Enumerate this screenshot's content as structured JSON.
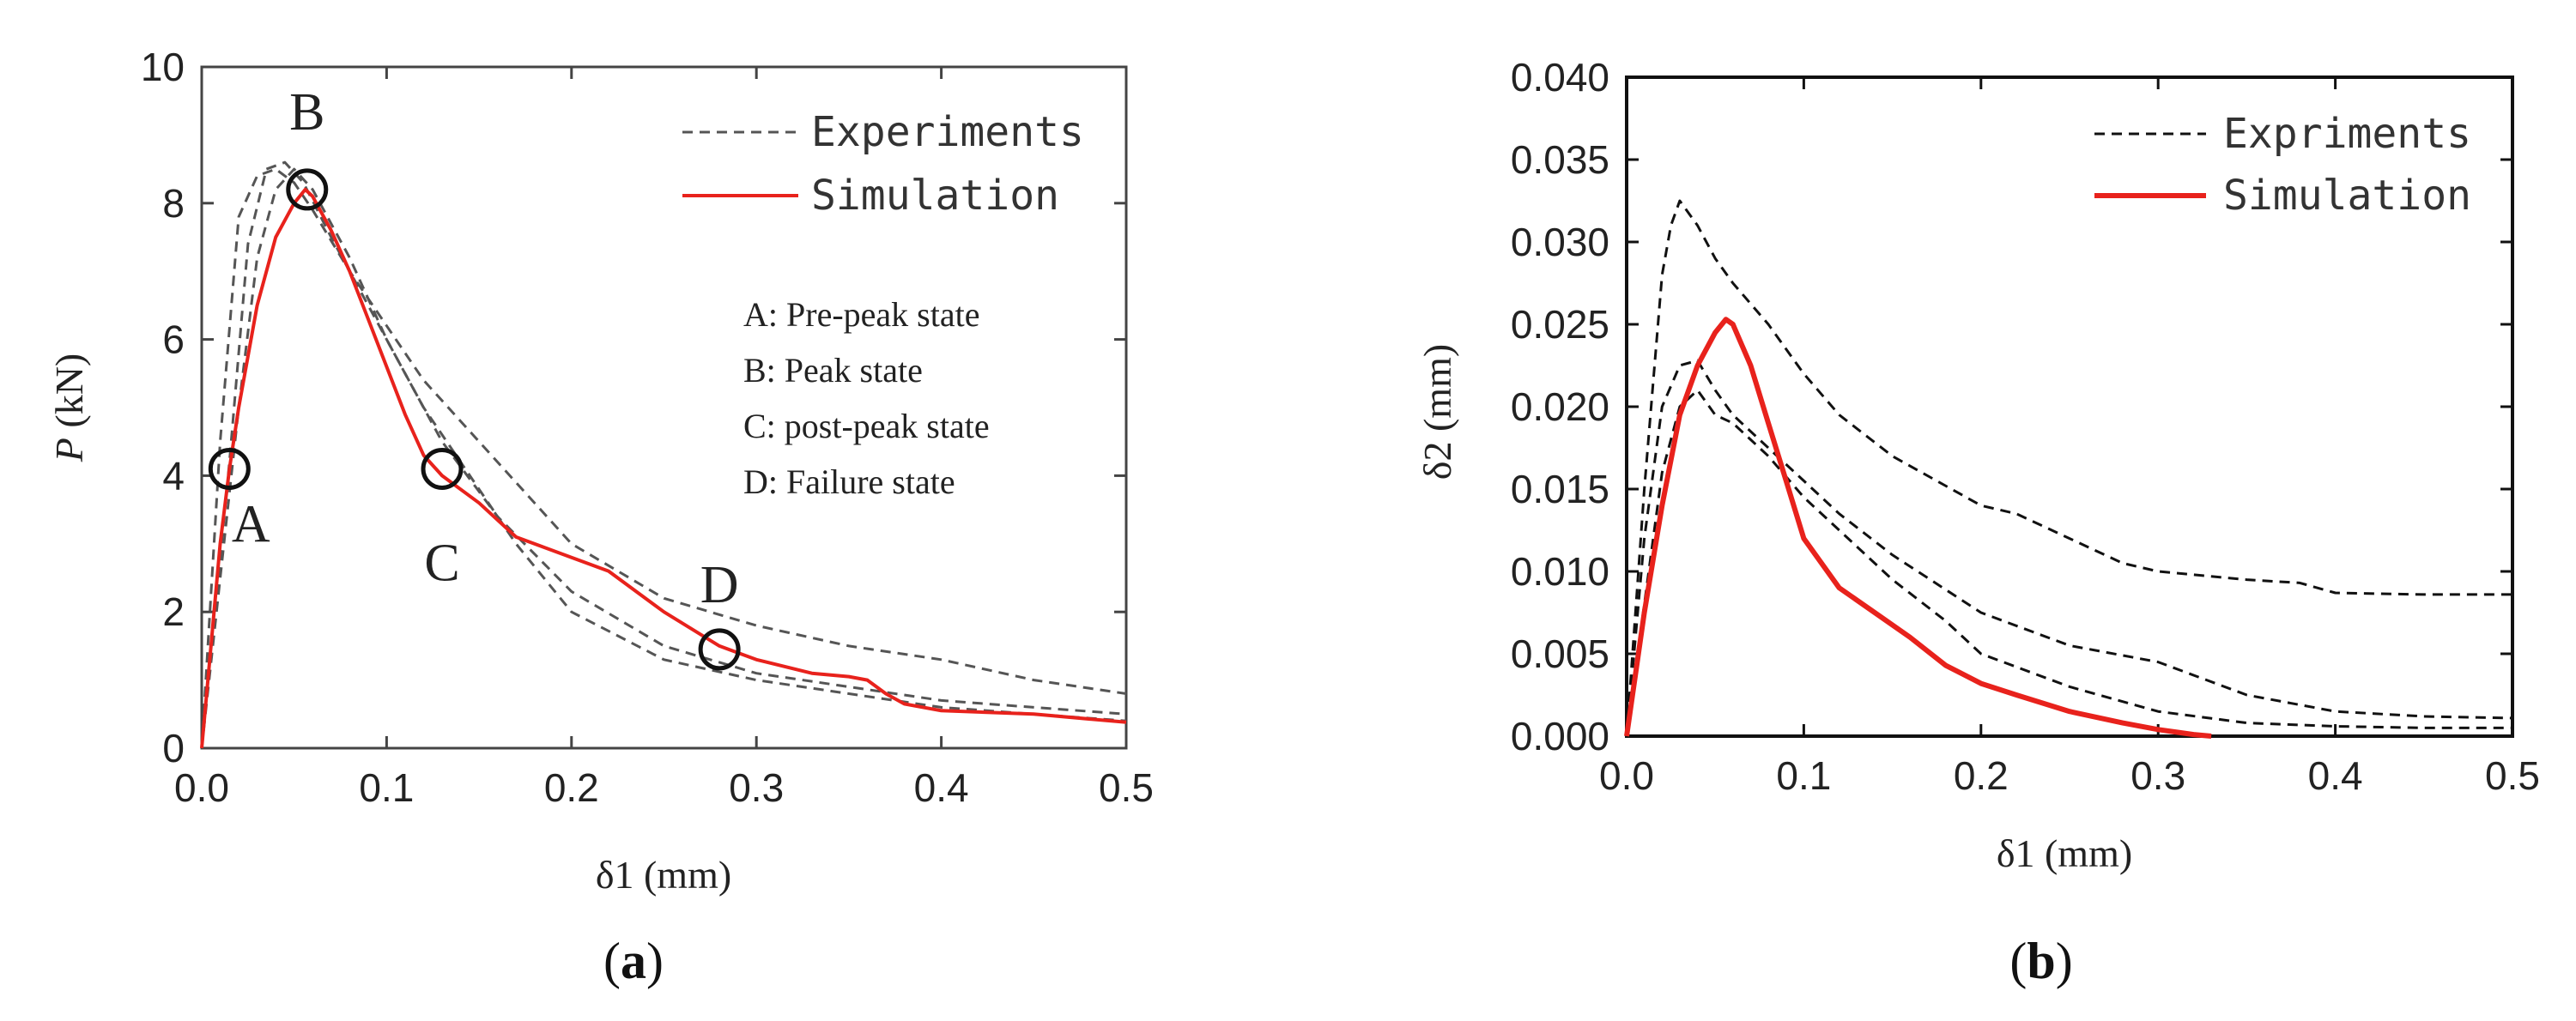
{
  "chart_data": [
    {
      "panel": "a",
      "type": "line",
      "title": "",
      "caption_prefix": "(",
      "caption_letter": "a",
      "caption_suffix": ")",
      "xlabel": "δ1 (mm)",
      "ylabel_var": "P",
      "ylabel_unit": " (kN)",
      "xlim": [
        0,
        0.5
      ],
      "ylim": [
        0,
        10
      ],
      "xticks": [
        "0.0",
        "0.1",
        "0.2",
        "0.3",
        "0.4",
        "0.5"
      ],
      "yticks": [
        "0",
        "2",
        "4",
        "6",
        "8",
        "10"
      ],
      "legend": [
        "Experiments",
        "Simulation"
      ],
      "legend_position": "top-right",
      "series": [
        {
          "name": "Experiments",
          "style": "dashed",
          "color": "#555555",
          "x": [
            0,
            0.01,
            0.02,
            0.03,
            0.04,
            0.05,
            0.06,
            0.08,
            0.1,
            0.12,
            0.15,
            0.2,
            0.25,
            0.3,
            0.35,
            0.4,
            0.45,
            0.5
          ],
          "y": [
            0,
            4.5,
            7.8,
            8.4,
            8.5,
            8.3,
            7.9,
            7.0,
            6.2,
            5.4,
            4.5,
            3.0,
            2.2,
            1.8,
            1.5,
            1.3,
            1.0,
            0.8
          ]
        },
        {
          "name": "Experiments",
          "style": "dashed",
          "color": "#555555",
          "x": [
            0,
            0.015,
            0.025,
            0.035,
            0.045,
            0.055,
            0.07,
            0.09,
            0.11,
            0.13,
            0.16,
            0.2,
            0.25,
            0.3,
            0.35,
            0.4,
            0.45,
            0.5
          ],
          "y": [
            0,
            4.2,
            7.4,
            8.5,
            8.6,
            8.3,
            7.5,
            6.5,
            5.5,
            4.5,
            3.4,
            2.3,
            1.5,
            1.1,
            0.9,
            0.7,
            0.6,
            0.5
          ]
        },
        {
          "name": "Experiments",
          "style": "dashed",
          "color": "#555555",
          "x": [
            0,
            0.02,
            0.03,
            0.04,
            0.05,
            0.06,
            0.08,
            0.1,
            0.12,
            0.14,
            0.17,
            0.2,
            0.25,
            0.3,
            0.35,
            0.4,
            0.45,
            0.5
          ],
          "y": [
            0,
            5.0,
            7.2,
            8.2,
            8.5,
            8.2,
            7.2,
            6.0,
            5.0,
            4.2,
            3.0,
            2.0,
            1.3,
            1.0,
            0.8,
            0.6,
            0.5,
            0.4
          ]
        },
        {
          "name": "Simulation",
          "style": "solid",
          "color": "#e8221c",
          "x": [
            0,
            0.005,
            0.01,
            0.015,
            0.02,
            0.03,
            0.04,
            0.05,
            0.056,
            0.06,
            0.07,
            0.08,
            0.09,
            0.1,
            0.11,
            0.12,
            0.13,
            0.15,
            0.17,
            0.2,
            0.22,
            0.25,
            0.28,
            0.3,
            0.33,
            0.35,
            0.36,
            0.37,
            0.38,
            0.4,
            0.45,
            0.5
          ],
          "y": [
            0,
            1.5,
            3.0,
            4.1,
            5.0,
            6.5,
            7.5,
            8.0,
            8.2,
            8.1,
            7.6,
            7.0,
            6.3,
            5.6,
            4.9,
            4.3,
            4.0,
            3.6,
            3.1,
            2.8,
            2.6,
            2.0,
            1.5,
            1.3,
            1.1,
            1.05,
            1.0,
            0.8,
            0.65,
            0.55,
            0.5,
            0.38
          ]
        }
      ],
      "points": [
        {
          "label": "A",
          "x": 0.015,
          "y": 4.1
        },
        {
          "label": "B",
          "x": 0.057,
          "y": 8.2
        },
        {
          "label": "C",
          "x": 0.13,
          "y": 4.1
        },
        {
          "label": "D",
          "x": 0.28,
          "y": 1.45
        }
      ],
      "annotations": [
        "A: Pre-peak state",
        "B: Peak state",
        "C: post-peak state",
        "D: Failure state"
      ]
    },
    {
      "panel": "b",
      "type": "line",
      "title": "",
      "caption_prefix": "(",
      "caption_letter": "b",
      "caption_suffix": ")",
      "xlabel": "δ1 (mm)",
      "ylabel": "δ2 (mm)",
      "xlim": [
        0,
        0.5
      ],
      "ylim": [
        0,
        0.04
      ],
      "xticks": [
        "0.0",
        "0.1",
        "0.2",
        "0.3",
        "0.4",
        "0.5"
      ],
      "yticks": [
        "0.000",
        "0.005",
        "0.010",
        "0.015",
        "0.020",
        "0.025",
        "0.030",
        "0.035",
        "0.040"
      ],
      "legend": [
        "Expriments",
        "Simulation"
      ],
      "legend_position": "top-right",
      "series": [
        {
          "name": "Expriments",
          "style": "dashed",
          "color": "#111111",
          "x": [
            0,
            0.01,
            0.02,
            0.025,
            0.03,
            0.04,
            0.05,
            0.06,
            0.08,
            0.1,
            0.12,
            0.15,
            0.2,
            0.22,
            0.25,
            0.28,
            0.3,
            0.35,
            0.38,
            0.4,
            0.45,
            0.5
          ],
          "y": [
            0,
            0.015,
            0.028,
            0.031,
            0.0325,
            0.031,
            0.029,
            0.0275,
            0.025,
            0.022,
            0.0195,
            0.017,
            0.014,
            0.0135,
            0.012,
            0.0105,
            0.01,
            0.0095,
            0.0093,
            0.0087,
            0.0086,
            0.0086
          ]
        },
        {
          "name": "Expriments",
          "style": "dashed",
          "color": "#111111",
          "x": [
            0,
            0.01,
            0.02,
            0.03,
            0.04,
            0.05,
            0.06,
            0.08,
            0.1,
            0.12,
            0.15,
            0.2,
            0.25,
            0.3,
            0.35,
            0.4,
            0.45,
            0.5
          ],
          "y": [
            0,
            0.012,
            0.02,
            0.0225,
            0.0228,
            0.021,
            0.0195,
            0.0175,
            0.0155,
            0.0135,
            0.011,
            0.0075,
            0.0055,
            0.0045,
            0.0025,
            0.0015,
            0.0012,
            0.0011
          ]
        },
        {
          "name": "Expriments",
          "style": "dashed",
          "color": "#111111",
          "x": [
            0,
            0.01,
            0.02,
            0.03,
            0.04,
            0.05,
            0.06,
            0.08,
            0.1,
            0.12,
            0.15,
            0.18,
            0.2,
            0.25,
            0.3,
            0.35,
            0.4,
            0.45,
            0.5
          ],
          "y": [
            0,
            0.008,
            0.016,
            0.02,
            0.021,
            0.0195,
            0.019,
            0.017,
            0.0145,
            0.0125,
            0.0095,
            0.007,
            0.005,
            0.003,
            0.0015,
            0.0008,
            0.0006,
            0.0005,
            0.0005
          ]
        },
        {
          "name": "Simulation",
          "style": "solid",
          "color": "#e8221c",
          "x": [
            0,
            0.01,
            0.02,
            0.03,
            0.04,
            0.05,
            0.056,
            0.06,
            0.07,
            0.08,
            0.09,
            0.1,
            0.12,
            0.14,
            0.16,
            0.18,
            0.2,
            0.22,
            0.25,
            0.28,
            0.3,
            0.32,
            0.33
          ],
          "y": [
            0,
            0.0075,
            0.014,
            0.0195,
            0.0225,
            0.0245,
            0.0253,
            0.025,
            0.0225,
            0.019,
            0.0155,
            0.012,
            0.009,
            0.0075,
            0.006,
            0.0043,
            0.0032,
            0.0025,
            0.0015,
            0.0008,
            0.0004,
            0.0001,
            0.0
          ]
        }
      ]
    }
  ]
}
